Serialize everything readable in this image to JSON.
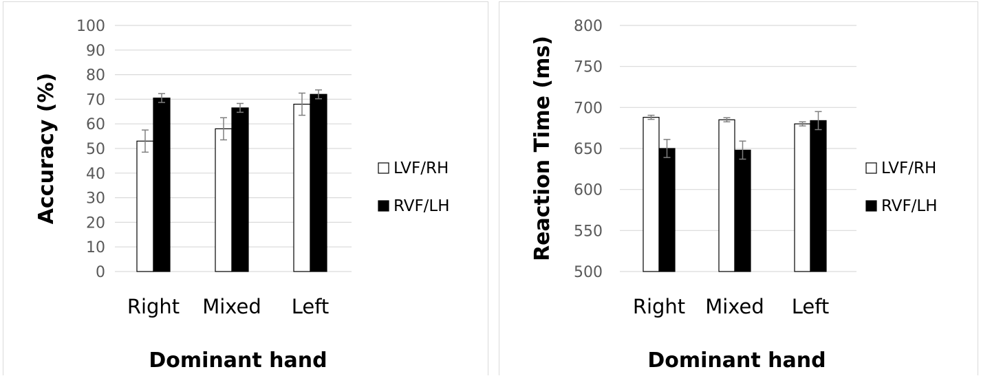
{
  "chart_data": [
    {
      "type": "bar",
      "title": "",
      "xlabel": "Dominant hand",
      "ylabel": "Accuracy (%)",
      "categories": [
        "Right",
        "Mixed",
        "Left"
      ],
      "ylim": [
        0,
        100
      ],
      "yticks": [
        0,
        10,
        20,
        30,
        40,
        50,
        60,
        70,
        80,
        90,
        100
      ],
      "grid": true,
      "legend_position": "right",
      "series": [
        {
          "name": "LVF/RH",
          "values": [
            53,
            58,
            68
          ],
          "errors": [
            4.5,
            4.5,
            4.5
          ],
          "fill": "#ffffff"
        },
        {
          "name": "RVF/LH",
          "values": [
            70.5,
            66.5,
            72
          ],
          "errors": [
            1.8,
            1.8,
            1.8
          ],
          "fill": "#000000"
        }
      ]
    },
    {
      "type": "bar",
      "title": "",
      "xlabel": "Dominant hand",
      "ylabel": "Reaction Time (ms)",
      "categories": [
        "Right",
        "Mixed",
        "Left"
      ],
      "ylim": [
        500,
        800
      ],
      "yticks": [
        500,
        550,
        600,
        650,
        700,
        750,
        800
      ],
      "grid": true,
      "legend_position": "right",
      "series": [
        {
          "name": "LVF/RH",
          "values": [
            688,
            685,
            680
          ],
          "errors": [
            2.5,
            2.5,
            2.5
          ],
          "fill": "#ffffff"
        },
        {
          "name": "RVF/LH",
          "values": [
            650,
            648,
            684
          ],
          "errors": [
            11,
            11,
            11
          ],
          "fill": "#000000"
        }
      ]
    }
  ]
}
